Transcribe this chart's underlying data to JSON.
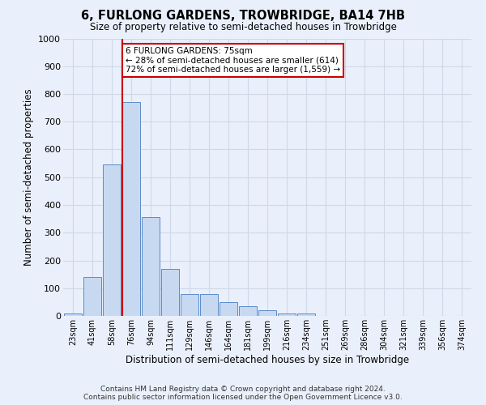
{
  "title1": "6, FURLONG GARDENS, TROWBRIDGE, BA14 7HB",
  "title2": "Size of property relative to semi-detached houses in Trowbridge",
  "xlabel": "Distribution of semi-detached houses by size in Trowbridge",
  "ylabel": "Number of semi-detached properties",
  "footnote1": "Contains HM Land Registry data © Crown copyright and database right 2024.",
  "footnote2": "Contains public sector information licensed under the Open Government Licence v3.0.",
  "bar_labels": [
    "23sqm",
    "41sqm",
    "58sqm",
    "76sqm",
    "94sqm",
    "111sqm",
    "129sqm",
    "146sqm",
    "164sqm",
    "181sqm",
    "199sqm",
    "216sqm",
    "234sqm",
    "251sqm",
    "269sqm",
    "286sqm",
    "304sqm",
    "321sqm",
    "339sqm",
    "356sqm",
    "374sqm"
  ],
  "bar_values": [
    10,
    140,
    545,
    770,
    355,
    170,
    80,
    80,
    50,
    35,
    20,
    10,
    8,
    0,
    0,
    0,
    0,
    0,
    0,
    0,
    0
  ],
  "bar_color": "#c6d9f1",
  "bar_edge_color": "#5b8bc9",
  "property_bin_index": 3,
  "vline_color": "#cc0000",
  "ylim": [
    0,
    1000
  ],
  "yticks": [
    0,
    100,
    200,
    300,
    400,
    500,
    600,
    700,
    800,
    900,
    1000
  ],
  "annotation_text1": "6 FURLONG GARDENS: 75sqm",
  "annotation_text2": "← 28% of semi-detached houses are smaller (614)",
  "annotation_text3": "72% of semi-detached houses are larger (1,559) →",
  "annotation_box_color": "#ffffff",
  "annotation_box_edge": "#cc0000",
  "grid_color": "#d0d8e8",
  "bg_color": "#eaf0fb"
}
